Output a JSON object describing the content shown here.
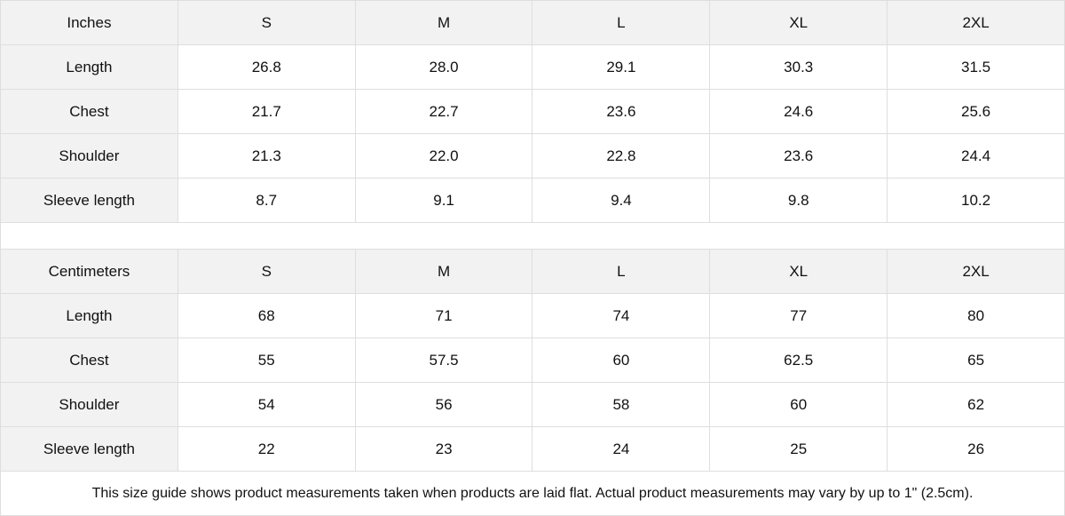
{
  "tables": [
    {
      "unit": "Inches",
      "sizes": [
        "S",
        "M",
        "L",
        "XL",
        "2XL"
      ],
      "rows": [
        {
          "label": "Length",
          "values": [
            "26.8",
            "28.0",
            "29.1",
            "30.3",
            "31.5"
          ]
        },
        {
          "label": "Chest",
          "values": [
            "21.7",
            "22.7",
            "23.6",
            "24.6",
            "25.6"
          ]
        },
        {
          "label": "Shoulder",
          "values": [
            "21.3",
            "22.0",
            "22.8",
            "23.6",
            "24.4"
          ]
        },
        {
          "label": "Sleeve length",
          "values": [
            "8.7",
            "9.1",
            "9.4",
            "9.8",
            "10.2"
          ]
        }
      ]
    },
    {
      "unit": "Centimeters",
      "sizes": [
        "S",
        "M",
        "L",
        "XL",
        "2XL"
      ],
      "rows": [
        {
          "label": "Length",
          "values": [
            "68",
            "71",
            "74",
            "77",
            "80"
          ]
        },
        {
          "label": "Chest",
          "values": [
            "55",
            "57.5",
            "60",
            "62.5",
            "65"
          ]
        },
        {
          "label": "Shoulder",
          "values": [
            "54",
            "56",
            "58",
            "60",
            "62"
          ]
        },
        {
          "label": "Sleeve length",
          "values": [
            "22",
            "23",
            "24",
            "25",
            "26"
          ]
        }
      ]
    }
  ],
  "note": "This size guide shows product measurements taken when products are laid flat.  Actual product measurements may vary by up to 1\" (2.5cm).",
  "colors": {
    "header_bg": "#f2f2f2",
    "border": "#dedede"
  }
}
